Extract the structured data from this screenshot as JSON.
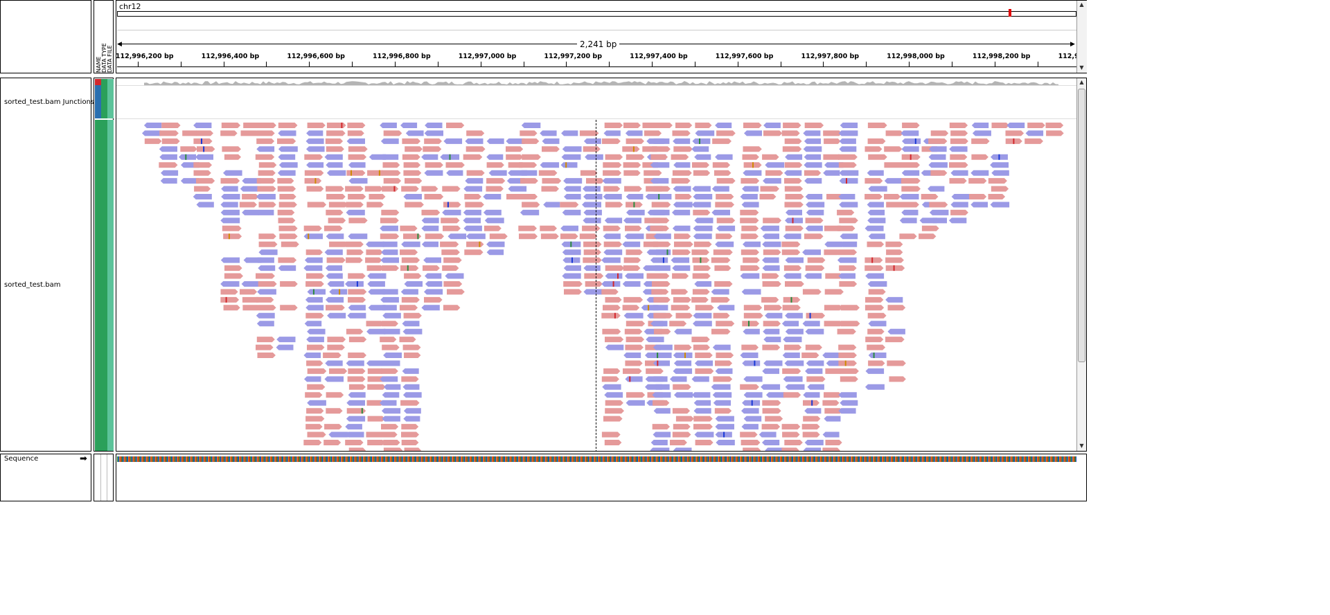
{
  "ruler": {
    "chromosome": "chr12",
    "span_label": "2,241 bp",
    "region_start": 112996150,
    "region_end": 112998391,
    "ticks": [
      {
        "pos": 112996200,
        "label": "112,996,200 bp"
      },
      {
        "pos": 112996400,
        "label": "112,996,400 bp"
      },
      {
        "pos": 112996600,
        "label": "112,996,600 bp"
      },
      {
        "pos": 112996800,
        "label": "112,996,800 bp"
      },
      {
        "pos": 112997000,
        "label": "112,997,000 bp"
      },
      {
        "pos": 112997200,
        "label": "112,997,200 bp"
      },
      {
        "pos": 112997400,
        "label": "112,997,400 bp"
      },
      {
        "pos": 112997600,
        "label": "112,997,600 bp"
      },
      {
        "pos": 112997800,
        "label": "112,997,800 bp"
      },
      {
        "pos": 112998000,
        "label": "112,998,000 bp"
      },
      {
        "pos": 112998200,
        "label": "112,998,200 bp"
      },
      {
        "pos": 112998400,
        "label": "112,9"
      }
    ]
  },
  "attribute_headers": [
    "NAME",
    "DATA TYPE",
    "DATA FILE"
  ],
  "tracks": {
    "junctions_label": "sorted_test.bam Junctions",
    "alignments_label": "sorted_test.bam",
    "sequence_label": "Sequence",
    "sequence_strand_icon": "right-arrow-icon"
  },
  "colors": {
    "forward_read": "#e59a9a",
    "reverse_read": "#9b9ae6",
    "coverage": "#b4b4b4",
    "attr_red": "#d2282d",
    "attr_blue": "#2a6fb0",
    "attr_green_dark": "#2aa05a",
    "attr_green_light": "#5cc39a",
    "chromosome_marker": "#e00000"
  }
}
